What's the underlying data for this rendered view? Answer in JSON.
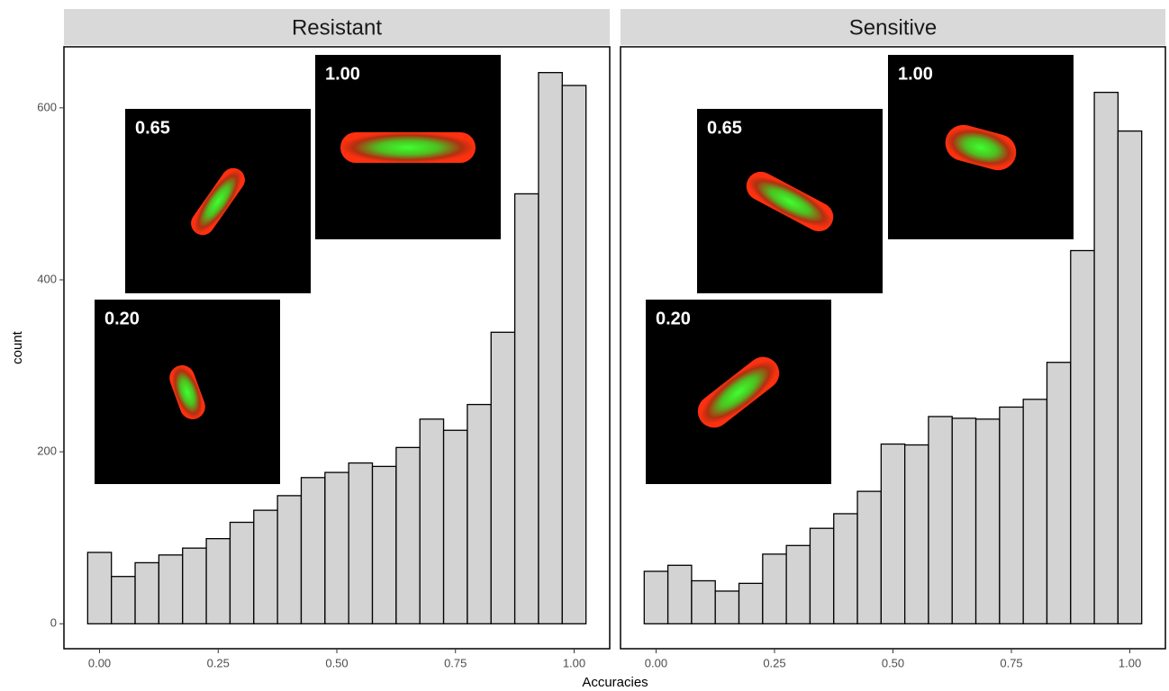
{
  "chart_data": [
    {
      "type": "histogram",
      "title": "Resistant",
      "xlabel": "Accuracies",
      "ylabel": "count",
      "color": "#d3d3d3",
      "bins": [
        -0.025,
        0.025,
        0.075,
        0.125,
        0.175,
        0.225,
        0.275,
        0.325,
        0.375,
        0.425,
        0.475,
        0.525,
        0.575,
        0.625,
        0.675,
        0.725,
        0.775,
        0.825,
        0.875,
        0.925,
        0.975,
        1.025
      ],
      "values": [
        83,
        55,
        71,
        80,
        88,
        99,
        118,
        132,
        149,
        170,
        176,
        187,
        183,
        205,
        238,
        225,
        255,
        339,
        500,
        641,
        626
      ],
      "xlim": [
        -0.075,
        1.075
      ],
      "ylim": [
        -29,
        671
      ],
      "xticks": [
        {
          "value": 0,
          "label": "0.00"
        },
        {
          "value": 0.25,
          "label": "0.25"
        },
        {
          "value": 0.5,
          "label": "0.50"
        },
        {
          "value": 0.75,
          "label": "0.75"
        },
        {
          "value": 1,
          "label": "1.00"
        }
      ],
      "yticks": [
        0,
        200,
        400,
        600
      ],
      "annotations": [
        "1.00",
        "0.65",
        "0.20"
      ]
    },
    {
      "type": "histogram",
      "title": "Sensitive",
      "color": "#d3d3d3",
      "bins": [
        -0.025,
        0.025,
        0.075,
        0.125,
        0.175,
        0.225,
        0.275,
        0.325,
        0.375,
        0.425,
        0.475,
        0.525,
        0.575,
        0.625,
        0.675,
        0.725,
        0.775,
        0.825,
        0.875,
        0.925,
        0.975,
        1.025
      ],
      "values": [
        61,
        68,
        50,
        38,
        47,
        81,
        91,
        111,
        128,
        154,
        209,
        208,
        241,
        239,
        238,
        252,
        261,
        304,
        434,
        618,
        573
      ],
      "xlim": [
        -0.075,
        1.075
      ],
      "ylim": [
        -29,
        671
      ],
      "xticks": [
        {
          "value": 0,
          "label": "0.00"
        },
        {
          "value": 0.25,
          "label": "0.25"
        },
        {
          "value": 0.5,
          "label": "0.50"
        },
        {
          "value": 0.75,
          "label": "0.75"
        },
        {
          "value": 1,
          "label": "1.00"
        }
      ],
      "yticks": [
        0,
        200,
        400,
        600
      ],
      "annotations": [
        "1.00",
        "0.65",
        "0.20"
      ]
    }
  ]
}
